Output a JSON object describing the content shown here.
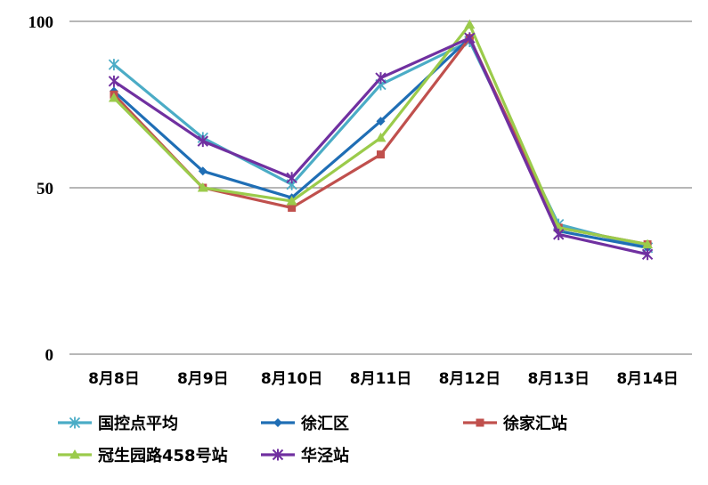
{
  "chart_data": {
    "type": "line",
    "title": "",
    "xlabel": "",
    "ylabel": "",
    "categories": [
      "8月8日",
      "8月9日",
      "8月10日",
      "8月11日",
      "8月12日",
      "8月13日",
      "8月14日"
    ],
    "ylim": [
      0,
      100
    ],
    "yticks": [
      0,
      50,
      100
    ],
    "grid": true,
    "legend_position": "bottom",
    "series": [
      {
        "name": "国控点平均",
        "color": "#4BACC6",
        "marker": "star",
        "values": [
          87,
          65,
          51,
          81,
          94,
          39,
          32
        ]
      },
      {
        "name": "徐汇区",
        "color": "#1F6EB5",
        "marker": "diamond",
        "values": [
          79,
          55,
          47,
          70,
          95,
          37,
          32
        ]
      },
      {
        "name": "徐家汇站",
        "color": "#C0504D",
        "marker": "square",
        "values": [
          78,
          50,
          44,
          60,
          95,
          38,
          33
        ]
      },
      {
        "name": "冠生园路458号站",
        "color": "#9BCB4B",
        "marker": "triangle",
        "values": [
          77,
          50,
          46,
          65,
          99,
          38,
          33
        ]
      },
      {
        "name": "华泾站",
        "color": "#7030A0",
        "marker": "asterisk",
        "values": [
          82,
          64,
          53,
          83,
          95,
          36,
          30
        ]
      }
    ]
  }
}
